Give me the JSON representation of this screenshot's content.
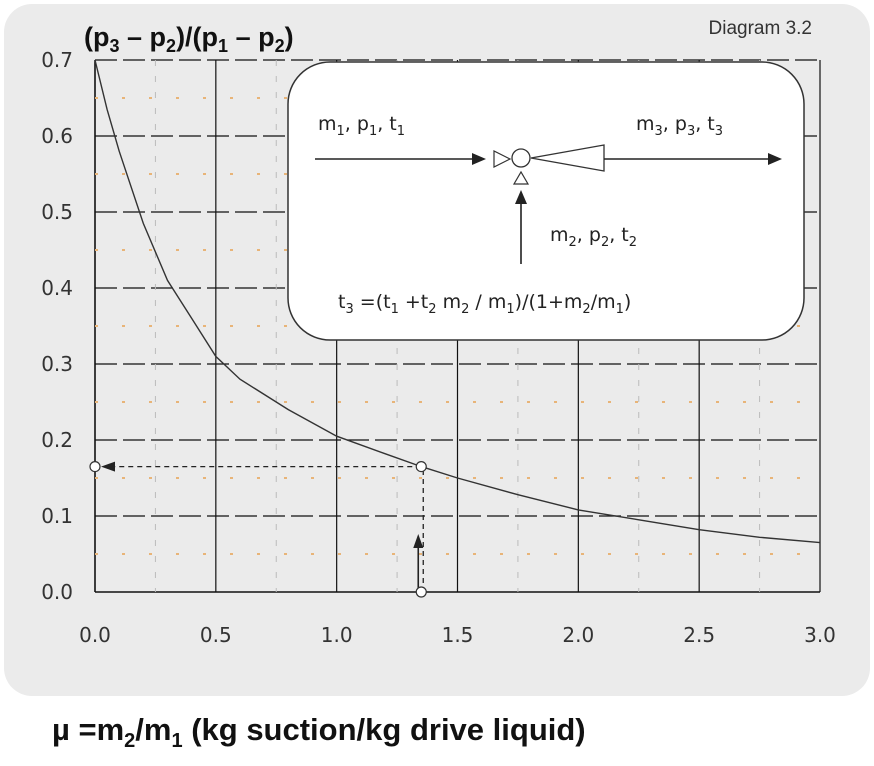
{
  "diagram_label": "Diagram 3.2",
  "y_title": {
    "open": "(",
    "p3": "p",
    "s3": "3",
    "mid1": " – ",
    "p2a": "p",
    "s2a": "2",
    "close_div": ")/(",
    "p1": "p",
    "s1": "1",
    "mid2": " – ",
    "p2b": "p",
    "s2b": "2",
    "close": ")"
  },
  "x_label": {
    "mu": "µ =m",
    "s2": "2",
    "slash": "/m",
    "s1": "1",
    "rest": " (kg suction/kg drive liquid)"
  },
  "inset": {
    "in_label": {
      "m": "m",
      "m_sub": "1",
      "p": ", p",
      "p_sub": "1",
      "t": ", t",
      "t_sub": "1"
    },
    "out_label": {
      "m": "m",
      "m_sub": "3",
      "p": ", p",
      "p_sub": "3",
      "t": ", t",
      "t_sub": "3"
    },
    "suction_label": {
      "m": "m",
      "m_sub": "2",
      "p": ", p",
      "p_sub": "2",
      "t": ", t",
      "t_sub": "2"
    },
    "formula": {
      "a": "t",
      "a_sub": "3",
      "b": " =(t",
      "b_sub": "1",
      "c": " +t",
      "c_sub": "2",
      "d": " m",
      "d_sub": "2",
      "e": " / m",
      "e_sub": "1",
      "f": ")/(1+m",
      "f_sub": "2",
      "g": "/m",
      "g_sub": "1",
      "h": ")"
    }
  },
  "chart_data": {
    "type": "line",
    "x_ticks": [
      "0.0",
      "0.5",
      "1.0",
      "1.5",
      "2.0",
      "2.5",
      "3.0"
    ],
    "y_ticks": [
      "0.0",
      "0.1",
      "0.2",
      "0.3",
      "0.4",
      "0.5",
      "0.6",
      "0.7"
    ],
    "xlim": [
      0,
      3
    ],
    "ylim": [
      0,
      0.7
    ],
    "grid": true,
    "series": [
      {
        "x": [
          0,
          0.05,
          0.1,
          0.2,
          0.3,
          0.4,
          0.5,
          0.6,
          0.8,
          1.0,
          1.2,
          1.35,
          1.5,
          1.75,
          2.0,
          2.25,
          2.5,
          2.75,
          3.0
        ],
        "y": [
          0.7,
          0.635,
          0.58,
          0.485,
          0.41,
          0.36,
          0.31,
          0.28,
          0.24,
          0.205,
          0.182,
          0.165,
          0.15,
          0.128,
          0.108,
          0.095,
          0.082,
          0.072,
          0.065
        ],
        "color": "#333333"
      }
    ],
    "annotation": {
      "x": 1.35,
      "y": 0.165
    }
  },
  "colors": {
    "panel": "#ebebeb",
    "grid": "#111111",
    "dotted": "#e8b478",
    "inset_bg": "#ffffff"
  }
}
